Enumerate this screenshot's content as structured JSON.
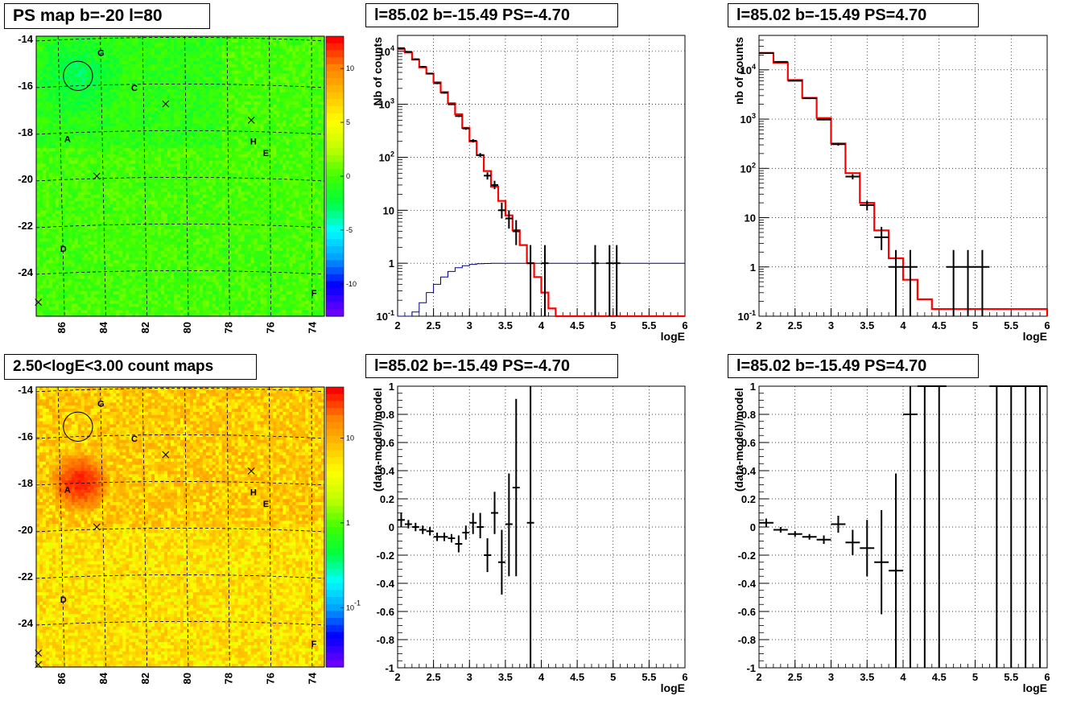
{
  "palette": {
    "hist_line": "#ff0000",
    "model_line": "#00008b",
    "data_points": "#000000",
    "grid": "#000000",
    "map_colorscale": [
      "#6a00ff",
      "#0000ff",
      "#00a0ff",
      "#00ffff",
      "#00ff40",
      "#40ff00",
      "#c0ff00",
      "#ffff00",
      "#ffc000",
      "#ff8000",
      "#ff0000"
    ]
  },
  "chart_data": [
    {
      "id": "ps_map",
      "type": "heatmap",
      "title": "PS map b=-20 l=80",
      "x_ticks": [
        "86",
        "84",
        "82",
        "80",
        "78",
        "76",
        "74"
      ],
      "y_ticks": [
        "-14",
        "-16",
        "-18",
        "-20",
        "-22",
        "-24"
      ],
      "xlim": [
        87.2,
        73.4
      ],
      "ylim": [
        -25.9,
        -13.9
      ],
      "colorbar_ticks": [
        "10",
        "5",
        "0",
        "-5",
        "-10"
      ],
      "colorbar_range": [
        -13,
        13
      ],
      "dominant_value": 0,
      "source_labels": [
        {
          "label": "G",
          "l": 84.1,
          "b": -14.6
        },
        {
          "label": "C",
          "l": 82.5,
          "b": -16.1
        },
        {
          "label": "A",
          "l": 85.7,
          "b": -18.3
        },
        {
          "label": "H",
          "l": 76.8,
          "b": -18.4
        },
        {
          "label": "E",
          "l": 76.2,
          "b": -18.9
        },
        {
          "label": "D",
          "l": 85.9,
          "b": -23.0
        },
        {
          "label": "F",
          "l": 73.9,
          "b": -24.9
        }
      ],
      "crosses": [
        {
          "l": 81.0,
          "b": -16.8
        },
        {
          "l": 76.9,
          "b": -17.5
        },
        {
          "l": 84.3,
          "b": -19.9
        },
        {
          "l": 87.1,
          "b": -25.3
        }
      ],
      "circle": {
        "l": 85.2,
        "b": -15.6,
        "r": 0.7
      }
    },
    {
      "id": "count_map",
      "type": "heatmap",
      "title": "2.50<logE<3.00 count maps",
      "x_ticks": [
        "86",
        "84",
        "82",
        "80",
        "78",
        "76",
        "74"
      ],
      "y_ticks": [
        "-14",
        "-16",
        "-18",
        "-20",
        "-22",
        "-24"
      ],
      "xlim": [
        87.2,
        73.4
      ],
      "ylim": [
        -25.9,
        -13.9
      ],
      "colorbar_ticks": [
        "10",
        "1",
        "10-1"
      ],
      "colorbar_log": true,
      "colorbar_range": [
        0.02,
        40
      ],
      "hotspot": {
        "l": 85.1,
        "b": -18.0,
        "value": 30
      },
      "typical_value": 5,
      "source_labels": [
        {
          "label": "G",
          "l": 84.1,
          "b": -14.6
        },
        {
          "label": "C",
          "l": 82.5,
          "b": -16.1
        },
        {
          "label": "A",
          "l": 85.7,
          "b": -18.3
        },
        {
          "label": "H",
          "l": 76.8,
          "b": -18.4
        },
        {
          "label": "E",
          "l": 76.2,
          "b": -18.9
        },
        {
          "label": "D",
          "l": 85.9,
          "b": -23.0
        },
        {
          "label": "F",
          "l": 73.9,
          "b": -24.9
        }
      ],
      "crosses": [
        {
          "l": 81.0,
          "b": -16.8
        },
        {
          "l": 76.9,
          "b": -17.5
        },
        {
          "l": 84.3,
          "b": -19.9
        },
        {
          "l": 87.1,
          "b": -25.3
        },
        {
          "l": 87.1,
          "b": -25.8
        }
      ],
      "circle": {
        "l": 85.2,
        "b": -15.6,
        "r": 0.7
      }
    },
    {
      "id": "spectrum_neg",
      "type": "line",
      "title": "l=85.02 b=-15.49 PS=-4.70",
      "xlabel": "logE",
      "ylabel": "Nb of counts",
      "log_y": true,
      "xlim": [
        2,
        6
      ],
      "ylim": [
        0.1,
        20000
      ],
      "x_ticks": [
        "2",
        "2.5",
        "3",
        "3.5",
        "4",
        "4.5",
        "5",
        "5.5",
        "6"
      ],
      "y_ticks": [
        "10-1",
        "1",
        "10",
        "102",
        "103",
        "104"
      ],
      "model_step": {
        "edges": [
          2.0,
          2.1,
          2.2,
          2.3,
          2.4,
          2.5,
          2.6,
          2.7,
          2.8,
          2.9,
          3.0,
          3.1,
          3.2,
          3.3,
          3.4,
          3.5,
          3.6,
          3.7,
          3.8,
          3.9,
          4.0,
          4.1,
          4.2,
          4.3,
          6.0
        ],
        "values": [
          11000,
          9500,
          7000,
          5000,
          3800,
          2600,
          1700,
          1050,
          650,
          360,
          200,
          110,
          55,
          28,
          15,
          8,
          4.2,
          2.2,
          1.0,
          0.55,
          0.28,
          0.14,
          0.06,
          0.1
        ]
      },
      "background_step": {
        "edges": [
          2.0,
          2.2,
          2.3,
          2.4,
          2.5,
          2.6,
          2.7,
          2.8,
          2.9,
          3.0,
          3.1,
          3.2,
          3.3,
          3.4,
          3.5,
          6.0
        ],
        "values": [
          0.08,
          0.12,
          0.18,
          0.28,
          0.4,
          0.55,
          0.7,
          0.82,
          0.9,
          0.95,
          0.98,
          0.99,
          1.0,
          1.0,
          1.0,
          1.0
        ]
      },
      "data_points": [
        {
          "x": 2.05,
          "y": 11500,
          "xe": 0.05,
          "ylo": 11300,
          "yhi": 11700
        },
        {
          "x": 2.15,
          "y": 9800,
          "xe": 0.05,
          "ylo": 9600,
          "yhi": 10000
        },
        {
          "x": 2.25,
          "y": 7100,
          "xe": 0.05,
          "ylo": 6900,
          "yhi": 7300
        },
        {
          "x": 2.35,
          "y": 5100,
          "xe": 0.05,
          "ylo": 4950,
          "yhi": 5250
        },
        {
          "x": 2.45,
          "y": 3800,
          "xe": 0.05,
          "ylo": 3680,
          "yhi": 3920
        },
        {
          "x": 2.55,
          "y": 2500,
          "xe": 0.05,
          "ylo": 2400,
          "yhi": 2600
        },
        {
          "x": 2.65,
          "y": 1650,
          "xe": 0.05,
          "ylo": 1590,
          "yhi": 1710
        },
        {
          "x": 2.75,
          "y": 1000,
          "xe": 0.05,
          "ylo": 970,
          "yhi": 1030
        },
        {
          "x": 2.85,
          "y": 600,
          "xe": 0.05,
          "ylo": 575,
          "yhi": 625
        },
        {
          "x": 2.95,
          "y": 350,
          "xe": 0.05,
          "ylo": 330,
          "yhi": 370
        },
        {
          "x": 3.05,
          "y": 205,
          "xe": 0.05,
          "ylo": 190,
          "yhi": 220
        },
        {
          "x": 3.15,
          "y": 110,
          "xe": 0.05,
          "ylo": 100,
          "yhi": 120
        },
        {
          "x": 3.25,
          "y": 45,
          "xe": 0.05,
          "ylo": 38,
          "yhi": 52
        },
        {
          "x": 3.35,
          "y": 30,
          "xe": 0.05,
          "ylo": 25,
          "yhi": 36
        },
        {
          "x": 3.45,
          "y": 10,
          "xe": 0.05,
          "ylo": 7,
          "yhi": 14
        },
        {
          "x": 3.55,
          "y": 7,
          "xe": 0.05,
          "ylo": 4.5,
          "yhi": 10
        },
        {
          "x": 3.65,
          "y": 4,
          "xe": 0.05,
          "ylo": 2.2,
          "yhi": 6.5
        },
        {
          "x": 3.85,
          "y": 1,
          "xe": 0.05,
          "ylo": 0.1,
          "yhi": 2.2
        },
        {
          "x": 4.05,
          "y": 1,
          "xe": 0.05,
          "ylo": 0.1,
          "yhi": 2.2
        },
        {
          "x": 4.75,
          "y": 1,
          "xe": 0.05,
          "ylo": 0.1,
          "yhi": 2.2
        },
        {
          "x": 4.95,
          "y": 1,
          "xe": 0.05,
          "ylo": 0.1,
          "yhi": 2.2
        },
        {
          "x": 5.05,
          "y": 1,
          "xe": 0.05,
          "ylo": 0.1,
          "yhi": 2.2
        }
      ]
    },
    {
      "id": "spectrum_pos",
      "type": "line",
      "title": "l=85.02 b=-15.49 PS=4.70",
      "xlabel": "logE",
      "ylabel": "nb of counts",
      "log_y": true,
      "xlim": [
        2,
        6
      ],
      "ylim": [
        0.1,
        50000
      ],
      "x_ticks": [
        "2",
        "2.5",
        "3",
        "3.5",
        "4",
        "4.5",
        "5",
        "5.5",
        "6"
      ],
      "y_ticks": [
        "10-1",
        "1",
        "10",
        "102",
        "103",
        "104"
      ],
      "model_step": {
        "edges": [
          2.0,
          2.2,
          2.4,
          2.6,
          2.8,
          3.0,
          3.2,
          3.4,
          3.6,
          3.8,
          4.0,
          4.2,
          4.4,
          6.0
        ],
        "values": [
          22000,
          14000,
          6200,
          2700,
          1050,
          320,
          80,
          20,
          5.5,
          1.5,
          0.55,
          0.22,
          0.14,
          0.1
        ]
      },
      "data_points": [
        {
          "x": 2.1,
          "y": 22000,
          "xe": 0.1,
          "ylo": 21700,
          "yhi": 22300
        },
        {
          "x": 2.3,
          "y": 14500,
          "xe": 0.1,
          "ylo": 14200,
          "yhi": 14800
        },
        {
          "x": 2.5,
          "y": 6000,
          "xe": 0.1,
          "ylo": 5850,
          "yhi": 6150
        },
        {
          "x": 2.7,
          "y": 2650,
          "xe": 0.1,
          "ylo": 2550,
          "yhi": 2750
        },
        {
          "x": 2.9,
          "y": 980,
          "xe": 0.1,
          "ylo": 940,
          "yhi": 1020
        },
        {
          "x": 3.1,
          "y": 310,
          "xe": 0.1,
          "ylo": 290,
          "yhi": 330
        },
        {
          "x": 3.3,
          "y": 68,
          "xe": 0.1,
          "ylo": 60,
          "yhi": 76
        },
        {
          "x": 3.5,
          "y": 18,
          "xe": 0.1,
          "ylo": 14,
          "yhi": 22
        },
        {
          "x": 3.7,
          "y": 4,
          "xe": 0.1,
          "ylo": 2.2,
          "yhi": 6.5
        },
        {
          "x": 3.9,
          "y": 1,
          "xe": 0.1,
          "ylo": 0.1,
          "yhi": 2.2
        },
        {
          "x": 4.1,
          "y": 1,
          "xe": 0.1,
          "ylo": 0.1,
          "yhi": 2.2
        },
        {
          "x": 4.7,
          "y": 1,
          "xe": 0.1,
          "ylo": 0.1,
          "yhi": 2.2
        },
        {
          "x": 4.9,
          "y": 1,
          "xe": 0.1,
          "ylo": 0.1,
          "yhi": 2.2
        },
        {
          "x": 5.1,
          "y": 1,
          "xe": 0.1,
          "ylo": 0.1,
          "yhi": 2.2
        }
      ]
    },
    {
      "id": "residual_neg",
      "type": "scatter",
      "title": "l=85.02 b=-15.49 PS=-4.70",
      "xlabel": "logE",
      "ylabel": "(data-model)/model",
      "xlim": [
        2,
        6
      ],
      "ylim": [
        -1,
        1
      ],
      "x_ticks": [
        "2",
        "2.5",
        "3",
        "3.5",
        "4",
        "4.5",
        "5",
        "5.5",
        "6"
      ],
      "y_ticks": [
        "1",
        "0.8",
        "0.6",
        "0.4",
        "0.2",
        "0",
        "-0.2",
        "-0.4",
        "-0.6",
        "-0.8",
        "-1"
      ],
      "data_points": [
        {
          "x": 2.05,
          "y": 0.05,
          "xe": 0.05,
          "ylo": 0.0,
          "yhi": 0.1
        },
        {
          "x": 2.15,
          "y": 0.02,
          "xe": 0.05,
          "ylo": -0.01,
          "yhi": 0.05
        },
        {
          "x": 2.25,
          "y": 0.0,
          "xe": 0.05,
          "ylo": -0.03,
          "yhi": 0.03
        },
        {
          "x": 2.35,
          "y": -0.02,
          "xe": 0.05,
          "ylo": -0.05,
          "yhi": 0.01
        },
        {
          "x": 2.45,
          "y": -0.03,
          "xe": 0.05,
          "ylo": -0.06,
          "yhi": 0.0
        },
        {
          "x": 2.55,
          "y": -0.07,
          "xe": 0.05,
          "ylo": -0.1,
          "yhi": -0.04
        },
        {
          "x": 2.65,
          "y": -0.07,
          "xe": 0.05,
          "ylo": -0.1,
          "yhi": -0.04
        },
        {
          "x": 2.75,
          "y": -0.08,
          "xe": 0.05,
          "ylo": -0.11,
          "yhi": -0.05
        },
        {
          "x": 2.85,
          "y": -0.12,
          "xe": 0.05,
          "ylo": -0.18,
          "yhi": -0.06
        },
        {
          "x": 2.95,
          "y": -0.04,
          "xe": 0.05,
          "ylo": -0.09,
          "yhi": 0.01
        },
        {
          "x": 3.05,
          "y": 0.03,
          "xe": 0.05,
          "ylo": -0.05,
          "yhi": 0.1
        },
        {
          "x": 3.15,
          "y": 0.0,
          "xe": 0.05,
          "ylo": -0.08,
          "yhi": 0.1
        },
        {
          "x": 3.25,
          "y": -0.2,
          "xe": 0.05,
          "ylo": -0.32,
          "yhi": -0.08
        },
        {
          "x": 3.35,
          "y": 0.1,
          "xe": 0.05,
          "ylo": -0.05,
          "yhi": 0.25
        },
        {
          "x": 3.45,
          "y": -0.25,
          "xe": 0.05,
          "ylo": -0.48,
          "yhi": -0.02
        },
        {
          "x": 3.55,
          "y": 0.02,
          "xe": 0.05,
          "ylo": -0.35,
          "yhi": 0.38
        },
        {
          "x": 3.65,
          "y": 0.28,
          "xe": 0.05,
          "ylo": -0.35,
          "yhi": 0.91
        },
        {
          "x": 3.85,
          "y": 0.03,
          "xe": 0.05,
          "ylo": -1.0,
          "yhi": 1.0
        }
      ]
    },
    {
      "id": "residual_pos",
      "type": "scatter",
      "title": "l=85.02 b=-15.49 PS=4.70",
      "xlabel": "logE",
      "ylabel": "(data-model)/model",
      "xlim": [
        2,
        6
      ],
      "ylim": [
        -1,
        1
      ],
      "x_ticks": [
        "2",
        "2.5",
        "3",
        "3.5",
        "4",
        "4.5",
        "5",
        "5.5",
        "6"
      ],
      "y_ticks": [
        "1",
        "0.8",
        "0.6",
        "0.4",
        "0.2",
        "0",
        "-0.2",
        "-0.4",
        "-0.6",
        "-0.8",
        "-1"
      ],
      "data_points": [
        {
          "x": 2.1,
          "y": 0.03,
          "xe": 0.1,
          "ylo": 0.0,
          "yhi": 0.06
        },
        {
          "x": 2.3,
          "y": -0.02,
          "xe": 0.1,
          "ylo": -0.04,
          "yhi": 0.0
        },
        {
          "x": 2.5,
          "y": -0.05,
          "xe": 0.1,
          "ylo": -0.07,
          "yhi": -0.03
        },
        {
          "x": 2.7,
          "y": -0.07,
          "xe": 0.1,
          "ylo": -0.09,
          "yhi": -0.05
        },
        {
          "x": 2.9,
          "y": -0.09,
          "xe": 0.1,
          "ylo": -0.12,
          "yhi": -0.06
        },
        {
          "x": 3.1,
          "y": 0.02,
          "xe": 0.1,
          "ylo": -0.04,
          "yhi": 0.08
        },
        {
          "x": 3.3,
          "y": -0.11,
          "xe": 0.1,
          "ylo": -0.2,
          "yhi": -0.02
        },
        {
          "x": 3.5,
          "y": -0.15,
          "xe": 0.1,
          "ylo": -0.35,
          "yhi": 0.05
        },
        {
          "x": 3.7,
          "y": -0.25,
          "xe": 0.1,
          "ylo": -0.62,
          "yhi": 0.12
        },
        {
          "x": 3.9,
          "y": -0.31,
          "xe": 0.1,
          "ylo": -1.0,
          "yhi": 0.38
        },
        {
          "x": 4.1,
          "y": 0.8,
          "xe": 0.1,
          "ylo": -1.0,
          "yhi": 1.0
        },
        {
          "x": 4.3,
          "y": 1.5,
          "xe": 0.1,
          "ylo": -1.0,
          "yhi": 1.0
        },
        {
          "x": 4.5,
          "y": 1.5,
          "xe": 0.1,
          "ylo": -1.0,
          "yhi": 1.0
        },
        {
          "x": 5.3,
          "y": 1.5,
          "xe": 0.1,
          "ylo": -1.0,
          "yhi": 1.0
        },
        {
          "x": 5.5,
          "y": 1.5,
          "xe": 0.1,
          "ylo": -1.0,
          "yhi": 1.0
        },
        {
          "x": 5.7,
          "y": 1.5,
          "xe": 0.1,
          "ylo": -1.0,
          "yhi": 1.0
        },
        {
          "x": 5.9,
          "y": 1.5,
          "xe": 0.1,
          "ylo": -1.0,
          "yhi": 1.0
        }
      ]
    }
  ]
}
